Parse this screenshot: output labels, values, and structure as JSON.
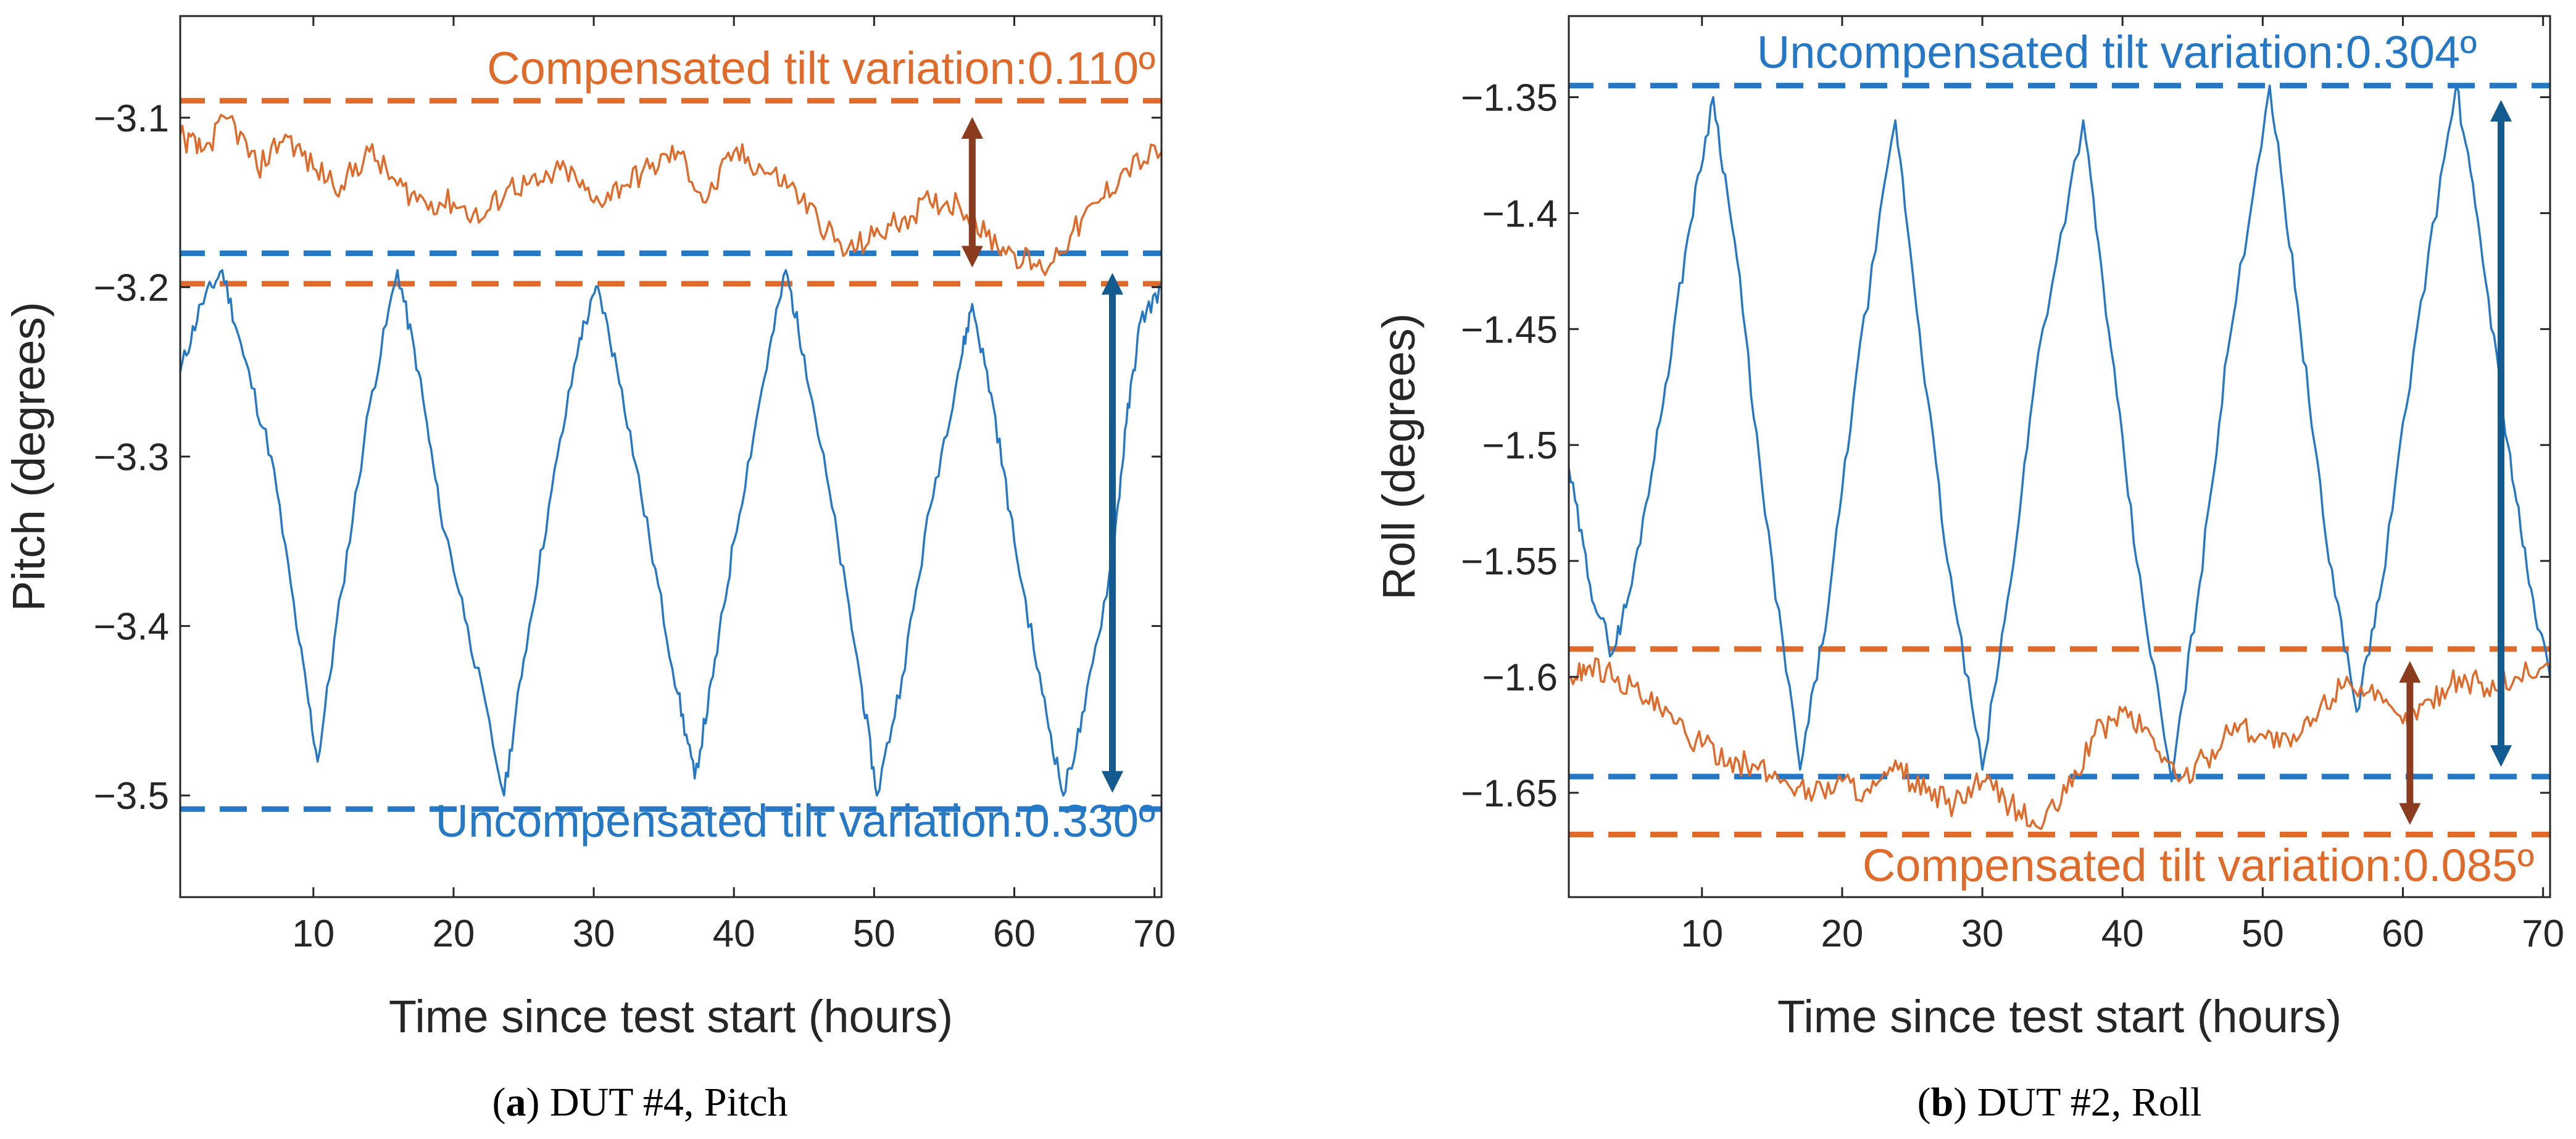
{
  "colors": {
    "uncompensated": "#2478c5",
    "compensated": "#e06a2a",
    "uncomp_arrow": "#135a90",
    "comp_arrow": "#8c3c1e",
    "axis": "#262626"
  },
  "chart_data": [
    {
      "type": "line",
      "panel": "a",
      "caption": {
        "letter": "a",
        "open": "(",
        "close": ")",
        "text": " DUT #4, Pitch"
      },
      "xlabel": "Time since test start (hours)",
      "ylabel": "Pitch (degrees)",
      "xlim": [
        0.5,
        70.5
      ],
      "ylim": [
        -3.56,
        -3.04
      ],
      "xticks": [
        10,
        20,
        30,
        40,
        50,
        60,
        70
      ],
      "yticks": [
        -3.1,
        -3.2,
        -3.3,
        -3.4,
        -3.5
      ],
      "ytick_labels": [
        "−3.1",
        "−3.2",
        "−3.3",
        "−3.4",
        "−3.5"
      ],
      "series": [
        {
          "name": "Uncompensated",
          "color_key": "uncompensated",
          "x": [
            0.5,
            2,
            3.5,
            5,
            7,
            9,
            10.3,
            12,
            14,
            16,
            17.5,
            19,
            21,
            23.6,
            25,
            27,
            29,
            30.3,
            32,
            34,
            36,
            37.2,
            38.5,
            40,
            42,
            43.7,
            45,
            47,
            49,
            50.2,
            52,
            54,
            56,
            57,
            58.5,
            60,
            62,
            63.5,
            65,
            67,
            68,
            69,
            70.5
          ],
          "values": [
            -3.25,
            -3.21,
            -3.19,
            -3.24,
            -3.3,
            -3.41,
            -3.48,
            -3.38,
            -3.27,
            -3.19,
            -3.25,
            -3.33,
            -3.4,
            -3.5,
            -3.42,
            -3.32,
            -3.23,
            -3.2,
            -3.26,
            -3.35,
            -3.44,
            -3.49,
            -3.43,
            -3.35,
            -3.26,
            -3.19,
            -3.24,
            -3.33,
            -3.43,
            -3.5,
            -3.43,
            -3.33,
            -3.25,
            -3.21,
            -3.27,
            -3.35,
            -3.44,
            -3.5,
            -3.45,
            -3.36,
            -3.28,
            -3.22,
            -3.2
          ]
        },
        {
          "name": "Compensated",
          "color_key": "compensated",
          "x": [
            0.5,
            2,
            4,
            6,
            8,
            10,
            12,
            14,
            16,
            18,
            20,
            22,
            24,
            26,
            28,
            30,
            32,
            34,
            36,
            38,
            40,
            42,
            44,
            46,
            48,
            50,
            52,
            54,
            56,
            58,
            60,
            62,
            64,
            66,
            68,
            70.5
          ],
          "values": [
            -3.11,
            -3.12,
            -3.1,
            -3.13,
            -3.11,
            -3.13,
            -3.14,
            -3.12,
            -3.14,
            -3.15,
            -3.15,
            -3.16,
            -3.14,
            -3.14,
            -3.13,
            -3.15,
            -3.14,
            -3.13,
            -3.12,
            -3.15,
            -3.12,
            -3.13,
            -3.14,
            -3.16,
            -3.18,
            -3.17,
            -3.16,
            -3.15,
            -3.15,
            -3.17,
            -3.18,
            -3.19,
            -3.17,
            -3.15,
            -3.13,
            -3.12
          ]
        }
      ],
      "reference_lines": [
        {
          "y": -3.09,
          "color_key": "compensated"
        },
        {
          "y": -3.198,
          "color_key": "compensated"
        },
        {
          "y": -3.18,
          "color_key": "uncompensated"
        },
        {
          "y": -3.508,
          "color_key": "uncompensated"
        }
      ],
      "arrows": [
        {
          "x": 57,
          "y1": -3.098,
          "y2": -3.19,
          "color_key": "comp_arrow"
        },
        {
          "x": 67,
          "y1": -3.19,
          "y2": -3.5,
          "color_key": "uncomp_arrow"
        }
      ],
      "annotations": [
        {
          "text": "Compensated tilt variation:0.110º",
          "color_key": "compensated"
        },
        {
          "text": "Uncompensated tilt variation:0.330º",
          "color_key": "uncompensated"
        }
      ]
    },
    {
      "type": "line",
      "panel": "b",
      "caption": {
        "letter": "b",
        "open": "(",
        "close": ")",
        "text": " DUT #2, Roll"
      },
      "xlabel": "Time since test start (hours)",
      "ylabel": "Roll (degrees)",
      "xlim": [
        0.5,
        70.5
      ],
      "ylim": [
        -1.695,
        -1.315
      ],
      "xticks": [
        10,
        20,
        30,
        40,
        50,
        60,
        70
      ],
      "yticks": [
        -1.35,
        -1.4,
        -1.45,
        -1.5,
        -1.55,
        -1.6,
        -1.65
      ],
      "ytick_labels": [
        "−1.35",
        "−1.4",
        "−1.45",
        "−1.5",
        "−1.55",
        "−1.6",
        "−1.65"
      ],
      "series": [
        {
          "name": "Uncompensated",
          "color_key": "uncompensated",
          "x": [
            0.5,
            2,
            3.6,
            5,
            7,
            9,
            10.8,
            12.5,
            14.5,
            17,
            19,
            21,
            23.8,
            25.5,
            27.5,
            30,
            32,
            34,
            37.2,
            39,
            41,
            43.5,
            45.5,
            47.5,
            50.5,
            52.5,
            54.5,
            56.7,
            58.5,
            61,
            63.8,
            65.5,
            67.5,
            69,
            70.5
          ],
          "values": [
            -1.51,
            -1.56,
            -1.59,
            -1.56,
            -1.49,
            -1.41,
            -1.35,
            -1.42,
            -1.53,
            -1.64,
            -1.57,
            -1.47,
            -1.36,
            -1.45,
            -1.55,
            -1.64,
            -1.56,
            -1.46,
            -1.36,
            -1.45,
            -1.55,
            -1.645,
            -1.56,
            -1.46,
            -1.345,
            -1.44,
            -1.54,
            -1.615,
            -1.56,
            -1.45,
            -1.345,
            -1.41,
            -1.5,
            -1.56,
            -1.6
          ]
        },
        {
          "name": "Compensated",
          "color_key": "compensated",
          "x": [
            0.5,
            2,
            4,
            6,
            8,
            10,
            12,
            14,
            16,
            18,
            20,
            22,
            24,
            26,
            28,
            30,
            32,
            34,
            36,
            38,
            40,
            42,
            44,
            46,
            48,
            50,
            52,
            54,
            56,
            58,
            60,
            62,
            64,
            66,
            68,
            70.5
          ],
          "values": [
            -1.6,
            -1.595,
            -1.6,
            -1.61,
            -1.62,
            -1.63,
            -1.635,
            -1.64,
            -1.645,
            -1.65,
            -1.645,
            -1.65,
            -1.64,
            -1.65,
            -1.655,
            -1.645,
            -1.655,
            -1.665,
            -1.65,
            -1.625,
            -1.615,
            -1.625,
            -1.645,
            -1.635,
            -1.62,
            -1.625,
            -1.63,
            -1.615,
            -1.6,
            -1.61,
            -1.62,
            -1.61,
            -1.6,
            -1.605,
            -1.6,
            -1.595
          ]
        }
      ],
      "reference_lines": [
        {
          "y": -1.345,
          "color_key": "uncompensated"
        },
        {
          "y": -1.643,
          "color_key": "uncompensated"
        },
        {
          "y": -1.588,
          "color_key": "compensated"
        },
        {
          "y": -1.668,
          "color_key": "compensated"
        }
      ],
      "arrows": [
        {
          "x": 67,
          "y1": -1.35,
          "y2": -1.64,
          "color_key": "uncomp_arrow"
        },
        {
          "x": 60.5,
          "y1": -1.592,
          "y2": -1.665,
          "color_key": "comp_arrow"
        }
      ],
      "annotations": [
        {
          "text": "Uncompensated tilt variation:0.304º",
          "color_key": "uncompensated"
        },
        {
          "text": "Compensated tilt variation:0.085º",
          "color_key": "compensated"
        }
      ]
    }
  ]
}
